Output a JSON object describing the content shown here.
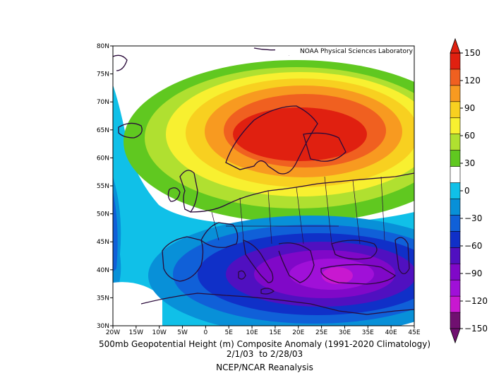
{
  "map": {
    "watermark": "NOAA Physical Sciences Laboratory",
    "lat_labels": [
      "80N",
      "75N",
      "70N",
      "65N",
      "60N",
      "55N",
      "50N",
      "45N",
      "40N",
      "35N",
      "30N"
    ],
    "lon_labels": [
      "20W",
      "15W",
      "10W",
      "5W",
      "0",
      "5E",
      "10E",
      "15E",
      "20E",
      "25E",
      "30E",
      "35E",
      "40E",
      "45E"
    ],
    "lat_range": [
      30,
      80
    ],
    "lon_range": [
      -20,
      45
    ]
  },
  "colorbar": {
    "labels": [
      "150",
      "120",
      "90",
      "60",
      "30",
      "0",
      "-30",
      "-60",
      "-90",
      "-120",
      "-150"
    ],
    "colors": [
      "#e02010",
      "#f06020",
      "#f89a20",
      "#f8d020",
      "#f8f030",
      "#b0e030",
      "#60c820",
      "#ffffff",
      "#10c0e8",
      "#0890d8",
      "#1060d8",
      "#1030c8",
      "#5010c0",
      "#8008c8",
      "#a010d8",
      "#c818d0",
      "#701070"
    ]
  },
  "caption": {
    "line1": "500mb Geopotential Height (m) Composite Anomaly (1991-2020 Climatology)",
    "line2": "2/1/03  to 2/28/03",
    "line3": "NCEP/NCAR Reanalysis"
  }
}
